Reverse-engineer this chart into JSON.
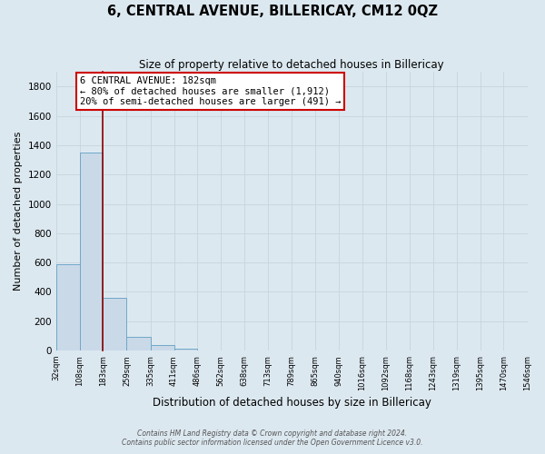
{
  "title": "6, CENTRAL AVENUE, BILLERICAY, CM12 0QZ",
  "subtitle": "Size of property relative to detached houses in Billericay",
  "xlabel": "Distribution of detached houses by size in Billericay",
  "ylabel": "Number of detached properties",
  "bar_edges": [
    32,
    108,
    183,
    259,
    335,
    411,
    486,
    562,
    638,
    713,
    789,
    865,
    940,
    1016,
    1092,
    1168,
    1243,
    1319,
    1395,
    1470,
    1546
  ],
  "bar_heights": [
    590,
    1350,
    360,
    95,
    35,
    10,
    0,
    0,
    0,
    0,
    0,
    0,
    0,
    0,
    0,
    0,
    0,
    0,
    0,
    0
  ],
  "bar_color": "#c9d9e8",
  "bar_edgecolor": "#6fa8c8",
  "vline_x": 183,
  "vline_color": "#8b0000",
  "annotation_title": "6 CENTRAL AVENUE: 182sqm",
  "annotation_line1": "← 80% of detached houses are smaller (1,912)",
  "annotation_line2": "20% of semi-detached houses are larger (491) →",
  "annotation_box_color": "#ffffff",
  "annotation_box_edgecolor": "#cc0000",
  "ylim": [
    0,
    1900
  ],
  "yticks": [
    0,
    200,
    400,
    600,
    800,
    1000,
    1200,
    1400,
    1600,
    1800
  ],
  "xtick_labels": [
    "32sqm",
    "108sqm",
    "183sqm",
    "259sqm",
    "335sqm",
    "411sqm",
    "486sqm",
    "562sqm",
    "638sqm",
    "713sqm",
    "789sqm",
    "865sqm",
    "940sqm",
    "1016sqm",
    "1092sqm",
    "1168sqm",
    "1243sqm",
    "1319sqm",
    "1395sqm",
    "1470sqm",
    "1546sqm"
  ],
  "grid_color": "#c8d4dc",
  "bg_color": "#dce8f0",
  "footer_line1": "Contains HM Land Registry data © Crown copyright and database right 2024.",
  "footer_line2": "Contains public sector information licensed under the Open Government Licence v3.0."
}
